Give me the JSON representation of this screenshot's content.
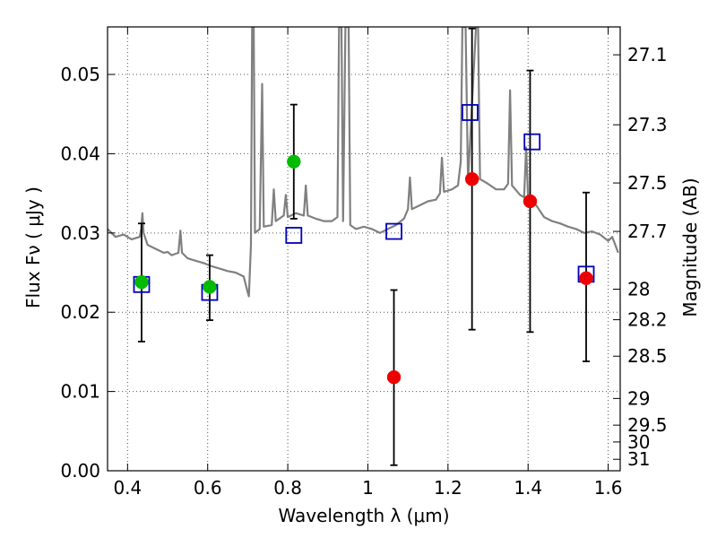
{
  "chart_data": {
    "type": "scatter",
    "title": "",
    "xlabel": "Wavelength  λ (μm)",
    "ylabel": "Flux  Fν  ( μJy )",
    "y2label": "Magnitude (AB)",
    "xlim": [
      0.35,
      1.63
    ],
    "ylim": [
      0.0,
      0.056
    ],
    "grid": true,
    "grid_style": "dotted",
    "x_ticks": [
      {
        "value": 0.4,
        "label": "0.4"
      },
      {
        "value": 0.6,
        "label": "0.6"
      },
      {
        "value": 0.8,
        "label": "0.8"
      },
      {
        "value": 1.0,
        "label": "1"
      },
      {
        "value": 1.2,
        "label": "1.2"
      },
      {
        "value": 1.4,
        "label": "1.4"
      },
      {
        "value": 1.6,
        "label": "1.6"
      }
    ],
    "y_ticks": [
      {
        "value": 0.0,
        "label": "0.00"
      },
      {
        "value": 0.01,
        "label": "0.01"
      },
      {
        "value": 0.02,
        "label": "0.02"
      },
      {
        "value": 0.03,
        "label": "0.03"
      },
      {
        "value": 0.04,
        "label": "0.04"
      },
      {
        "value": 0.05,
        "label": "0.05"
      }
    ],
    "y2_ticks": [
      {
        "mag": 27.1,
        "label": "27.1"
      },
      {
        "mag": 27.3,
        "label": "27.3"
      },
      {
        "mag": 27.5,
        "label": "27.5"
      },
      {
        "mag": 27.7,
        "label": "27.7"
      },
      {
        "mag": 28.0,
        "label": "28"
      },
      {
        "mag": 28.2,
        "label": "28.2"
      },
      {
        "mag": 28.5,
        "label": "28.5"
      },
      {
        "mag": 29.0,
        "label": "29"
      },
      {
        "mag": 29.5,
        "label": "29.5"
      },
      {
        "mag": 30.0,
        "label": "30"
      },
      {
        "mag": 31.0,
        "label": "31"
      }
    ],
    "colors": {
      "spectrum": "#808080",
      "model": "#0000bb",
      "green_points": "#00bb00",
      "red_points": "#ee0000",
      "errorbar": "#000000",
      "grid": "#555555"
    },
    "series": [
      {
        "kind": "spectrum",
        "color": "#808080",
        "points": [
          [
            0.35,
            0.0305
          ],
          [
            0.37,
            0.0295
          ],
          [
            0.39,
            0.0298
          ],
          [
            0.41,
            0.0292
          ],
          [
            0.43,
            0.0295
          ],
          [
            0.434,
            0.0305
          ],
          [
            0.437,
            0.0325
          ],
          [
            0.44,
            0.03
          ],
          [
            0.45,
            0.0285
          ],
          [
            0.47,
            0.028
          ],
          [
            0.49,
            0.0275
          ],
          [
            0.5,
            0.0276
          ],
          [
            0.51,
            0.0272
          ],
          [
            0.527,
            0.0275
          ],
          [
            0.532,
            0.0303
          ],
          [
            0.536,
            0.0275
          ],
          [
            0.55,
            0.0268
          ],
          [
            0.57,
            0.0265
          ],
          [
            0.59,
            0.0262
          ],
          [
            0.61,
            0.0258
          ],
          [
            0.63,
            0.0255
          ],
          [
            0.65,
            0.0252
          ],
          [
            0.67,
            0.025
          ],
          [
            0.69,
            0.0245
          ],
          [
            0.7,
            0.0225
          ],
          [
            0.703,
            0.022
          ],
          [
            0.708,
            0.0285
          ],
          [
            0.711,
            0.056
          ],
          [
            0.715,
            0.056
          ],
          [
            0.718,
            0.03
          ],
          [
            0.73,
            0.0305
          ],
          [
            0.736,
            0.0488
          ],
          [
            0.74,
            0.0308
          ],
          [
            0.76,
            0.031
          ],
          [
            0.765,
            0.0355
          ],
          [
            0.77,
            0.0315
          ],
          [
            0.79,
            0.0322
          ],
          [
            0.795,
            0.0348
          ],
          [
            0.8,
            0.032
          ],
          [
            0.82,
            0.0325
          ],
          [
            0.84,
            0.0322
          ],
          [
            0.845,
            0.036
          ],
          [
            0.85,
            0.0322
          ],
          [
            0.87,
            0.0318
          ],
          [
            0.89,
            0.0315
          ],
          [
            0.91,
            0.0315
          ],
          [
            0.924,
            0.032
          ],
          [
            0.928,
            0.056
          ],
          [
            0.934,
            0.056
          ],
          [
            0.938,
            0.0315
          ],
          [
            0.944,
            0.056
          ],
          [
            0.952,
            0.056
          ],
          [
            0.956,
            0.031
          ],
          [
            0.97,
            0.0305
          ],
          [
            0.99,
            0.0308
          ],
          [
            1.01,
            0.0305
          ],
          [
            1.03,
            0.03
          ],
          [
            1.05,
            0.0305
          ],
          [
            1.07,
            0.031
          ],
          [
            1.09,
            0.0318
          ],
          [
            1.1,
            0.033
          ],
          [
            1.105,
            0.037
          ],
          [
            1.11,
            0.033
          ],
          [
            1.13,
            0.0335
          ],
          [
            1.15,
            0.034
          ],
          [
            1.17,
            0.0342
          ],
          [
            1.18,
            0.035
          ],
          [
            1.185,
            0.0395
          ],
          [
            1.19,
            0.0352
          ],
          [
            1.21,
            0.0355
          ],
          [
            1.225,
            0.036
          ],
          [
            1.232,
            0.039
          ],
          [
            1.236,
            0.056
          ],
          [
            1.244,
            0.056
          ],
          [
            1.25,
            0.0365
          ],
          [
            1.27,
            0.056
          ],
          [
            1.275,
            0.056
          ],
          [
            1.28,
            0.0368
          ],
          [
            1.3,
            0.0362
          ],
          [
            1.32,
            0.0355
          ],
          [
            1.34,
            0.0355
          ],
          [
            1.35,
            0.0362
          ],
          [
            1.355,
            0.048
          ],
          [
            1.36,
            0.036
          ],
          [
            1.38,
            0.0348
          ],
          [
            1.39,
            0.0345
          ],
          [
            1.395,
            0.0408
          ],
          [
            1.4,
            0.0345
          ],
          [
            1.42,
            0.0335
          ],
          [
            1.44,
            0.032
          ],
          [
            1.46,
            0.0315
          ],
          [
            1.48,
            0.0312
          ],
          [
            1.5,
            0.0308
          ],
          [
            1.52,
            0.0305
          ],
          [
            1.54,
            0.03
          ],
          [
            1.56,
            0.0302
          ],
          [
            1.58,
            0.0298
          ],
          [
            1.6,
            0.029
          ],
          [
            1.61,
            0.0295
          ],
          [
            1.625,
            0.0275
          ]
        ]
      },
      {
        "kind": "model",
        "marker": "open-square",
        "color": "#0000bb",
        "x": [
          0.435,
          0.605,
          0.815,
          1.065,
          1.255,
          1.41,
          1.545
        ],
        "y": [
          0.0235,
          0.0225,
          0.0297,
          0.0302,
          0.0452,
          0.0415,
          0.0248
        ]
      },
      {
        "kind": "observed",
        "marker": "filled-circle",
        "color": "#00bb00",
        "x": [
          0.435,
          0.605,
          0.815
        ],
        "y": [
          0.0238,
          0.0232,
          0.039
        ],
        "yerr_low": [
          0.0163,
          0.019,
          0.0318
        ],
        "yerr_high": [
          0.0312,
          0.0272,
          0.0462
        ]
      },
      {
        "kind": "observed",
        "marker": "filled-circle",
        "color": "#ee0000",
        "x": [
          1.065,
          1.26,
          1.405,
          1.545
        ],
        "y": [
          0.0118,
          0.0368,
          0.034,
          0.0243
        ],
        "yerr_low": [
          0.0007,
          0.0178,
          0.0175,
          0.0138
        ],
        "yerr_high": [
          0.0228,
          0.0558,
          0.0505,
          0.0351
        ]
      }
    ]
  }
}
